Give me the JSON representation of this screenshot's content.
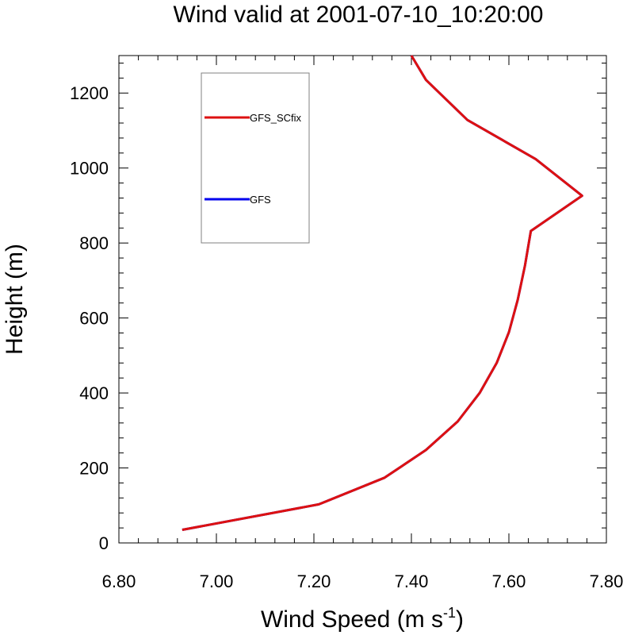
{
  "chart_data": {
    "type": "line",
    "title": "Wind valid at 2001-07-10_10:20:00",
    "xlabel": "Wind Speed (m s",
    "xlabel_superscript": "-1",
    "xlabel_suffix": ")",
    "ylabel": "Height (m)",
    "xlim": [
      6.8,
      7.8
    ],
    "ylim": [
      0,
      1300
    ],
    "x_ticks": [
      "6.80",
      "7.00",
      "7.20",
      "7.40",
      "7.60",
      "7.80"
    ],
    "x_tick_values": [
      6.8,
      7.0,
      7.2,
      7.4,
      7.6,
      7.8
    ],
    "y_ticks": [
      "0",
      "200",
      "400",
      "600",
      "800",
      "1000",
      "1200"
    ],
    "y_tick_values": [
      0,
      200,
      400,
      600,
      800,
      1000,
      1200
    ],
    "grid": false,
    "legend_position": "top-left",
    "series": [
      {
        "name": "GFS",
        "color": "#0000ee",
        "x": [
          6.93,
          7.21,
          7.345,
          7.43,
          7.495,
          7.54,
          7.575,
          7.6,
          7.618,
          7.633,
          7.645,
          7.75,
          7.655,
          7.515,
          7.43,
          7.4
        ],
        "y": [
          35,
          103,
          174,
          248,
          324,
          400,
          480,
          562,
          648,
          740,
          832,
          926,
          1024,
          1128,
          1235,
          1300
        ]
      },
      {
        "name": "GFS_SCfix",
        "color": "#dd1111",
        "x": [
          6.93,
          7.21,
          7.345,
          7.43,
          7.495,
          7.54,
          7.575,
          7.6,
          7.618,
          7.633,
          7.645,
          7.75,
          7.655,
          7.515,
          7.43,
          7.4
        ],
        "y": [
          35,
          103,
          174,
          248,
          324,
          400,
          480,
          562,
          648,
          740,
          832,
          926,
          1024,
          1128,
          1235,
          1300
        ]
      }
    ],
    "legend_order": [
      "GFS_SCfix",
      "GFS"
    ]
  }
}
